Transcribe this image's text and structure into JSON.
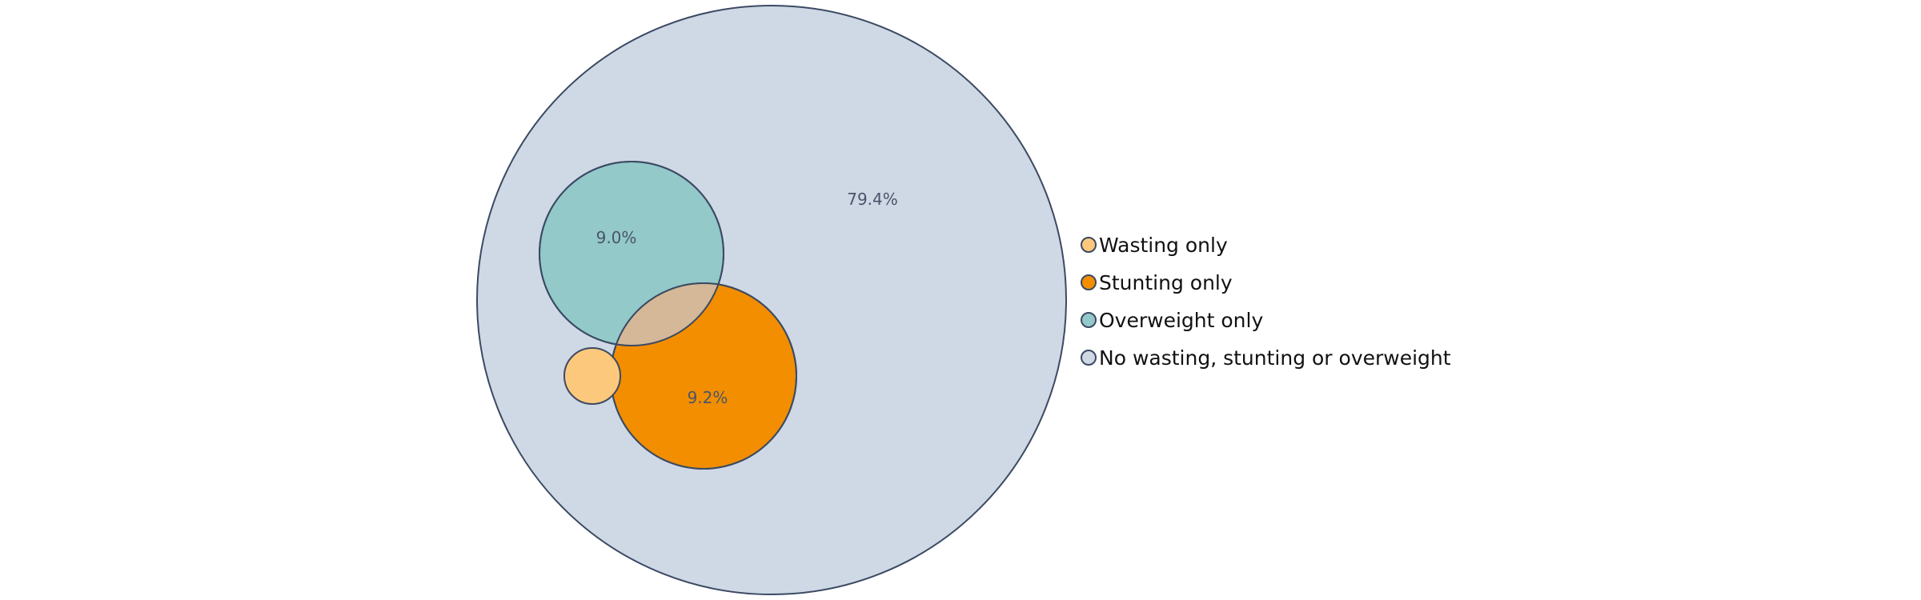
{
  "chart_data": {
    "type": "venn",
    "title": "",
    "sets": [
      {
        "key": "none",
        "name": "No wasting, stunting or overweight",
        "color": "#cfd8e5"
      },
      {
        "key": "overweight",
        "name": "Overweight only",
        "color": "#93c9c9"
      },
      {
        "key": "stunting",
        "name": "Stunting only",
        "color": "#f28e00"
      },
      {
        "key": "wasting",
        "name": "Wasting only",
        "color": "#fcc97c"
      }
    ],
    "overlap_color": "#d4b897",
    "stroke_color": "#3b4a63",
    "labels": [
      {
        "set": "none",
        "text": "79.4%"
      },
      {
        "set": "overweight",
        "text": "9.0%"
      },
      {
        "set": "stunting",
        "text": "9.2%"
      }
    ],
    "legend": [
      {
        "label": "Wasting only",
        "color": "#fcc97c"
      },
      {
        "label": "Stunting only",
        "color": "#f28e00"
      },
      {
        "label": "Overweight only",
        "color": "#93c9c9"
      },
      {
        "label": "No wasting, stunting or overweight",
        "color": "#cfd8e5"
      }
    ],
    "legend_position": "right"
  }
}
